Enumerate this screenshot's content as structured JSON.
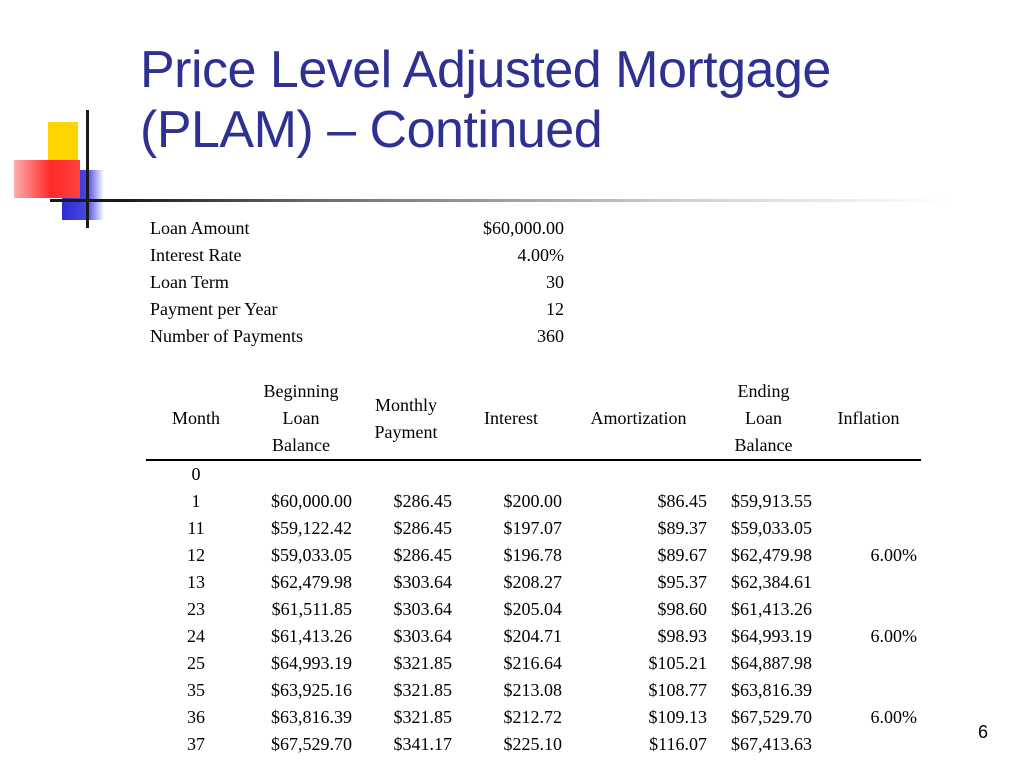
{
  "slide": {
    "title_line1": "Price Level Adjusted Mortgage",
    "title_line2": "(PLAM) – Continued",
    "page_number": "6"
  },
  "params": [
    {
      "label": "Loan Amount",
      "value": "$60,000.00"
    },
    {
      "label": "Interest Rate",
      "value": "4.00%"
    },
    {
      "label": "Loan Term",
      "value": "30"
    },
    {
      "label": "Payment per Year",
      "value": "12"
    },
    {
      "label": "Number of Payments",
      "value": "360"
    }
  ],
  "table": {
    "headers": {
      "month": "Month",
      "beginning": [
        "Beginning",
        "Loan",
        "Balance"
      ],
      "payment": [
        "Monthly",
        "Payment"
      ],
      "interest": "Interest",
      "amortization": "Amortization",
      "ending": [
        "Ending",
        "Loan",
        "Balance"
      ],
      "inflation": "Inflation"
    },
    "rows": [
      {
        "month": "0",
        "beginning": "",
        "payment": "",
        "interest": "",
        "amortization": "",
        "ending": "",
        "inflation": ""
      },
      {
        "month": "1",
        "beginning": "$60,000.00",
        "payment": "$286.45",
        "interest": "$200.00",
        "amortization": "$86.45",
        "ending": "$59,913.55",
        "inflation": ""
      },
      {
        "month": "11",
        "beginning": "$59,122.42",
        "payment": "$286.45",
        "interest": "$197.07",
        "amortization": "$89.37",
        "ending": "$59,033.05",
        "inflation": ""
      },
      {
        "month": "12",
        "beginning": "$59,033.05",
        "payment": "$286.45",
        "interest": "$196.78",
        "amortization": "$89.67",
        "ending": "$62,479.98",
        "inflation": "6.00%"
      },
      {
        "month": "13",
        "beginning": "$62,479.98",
        "payment": "$303.64",
        "interest": "$208.27",
        "amortization": "$95.37",
        "ending": "$62,384.61",
        "inflation": ""
      },
      {
        "month": "23",
        "beginning": "$61,511.85",
        "payment": "$303.64",
        "interest": "$205.04",
        "amortization": "$98.60",
        "ending": "$61,413.26",
        "inflation": ""
      },
      {
        "month": "24",
        "beginning": "$61,413.26",
        "payment": "$303.64",
        "interest": "$204.71",
        "amortization": "$98.93",
        "ending": "$64,993.19",
        "inflation": "6.00%"
      },
      {
        "month": "25",
        "beginning": "$64,993.19",
        "payment": "$321.85",
        "interest": "$216.64",
        "amortization": "$105.21",
        "ending": "$64,887.98",
        "inflation": ""
      },
      {
        "month": "35",
        "beginning": "$63,925.16",
        "payment": "$321.85",
        "interest": "$213.08",
        "amortization": "$108.77",
        "ending": "$63,816.39",
        "inflation": ""
      },
      {
        "month": "36",
        "beginning": "$63,816.39",
        "payment": "$321.85",
        "interest": "$212.72",
        "amortization": "$109.13",
        "ending": "$67,529.70",
        "inflation": "6.00%"
      },
      {
        "month": "37",
        "beginning": "$67,529.70",
        "payment": "$341.17",
        "interest": "$225.10",
        "amortization": "$116.07",
        "ending": "$67,413.63",
        "inflation": ""
      }
    ]
  },
  "colors": {
    "title": "#2e3192",
    "yellow": "#ffd400",
    "red": "#ff2a2a",
    "blue": "#2d2ad6"
  }
}
